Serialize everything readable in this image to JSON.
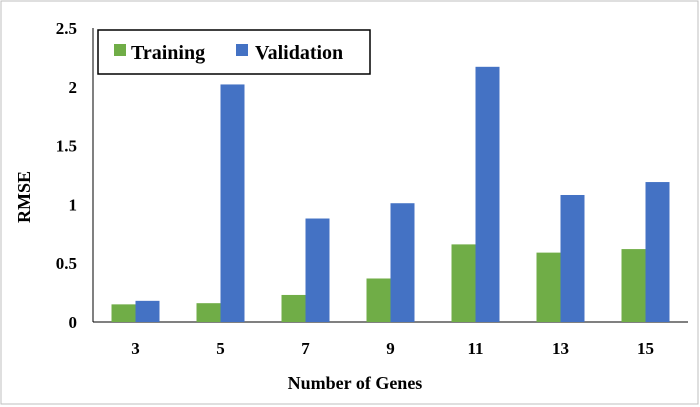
{
  "chart_data": {
    "type": "bar",
    "title": "",
    "xlabel": "Number of Genes",
    "ylabel": "RMSE",
    "categories": [
      "3",
      "5",
      "7",
      "9",
      "11",
      "13",
      "15"
    ],
    "ylim": [
      0,
      2.5
    ],
    "yticks": [
      "0",
      "0.5",
      "1",
      "1.5",
      "2",
      "2.5"
    ],
    "grid": false,
    "legend_position": "top-left",
    "series": [
      {
        "name": "Training",
        "color": "#70ad47",
        "values": [
          0.15,
          0.16,
          0.23,
          0.37,
          0.66,
          0.59,
          0.62
        ]
      },
      {
        "name": "Validation",
        "color": "#4472c4",
        "values": [
          0.18,
          2.02,
          0.88,
          1.01,
          2.17,
          1.08,
          1.19
        ]
      }
    ]
  }
}
